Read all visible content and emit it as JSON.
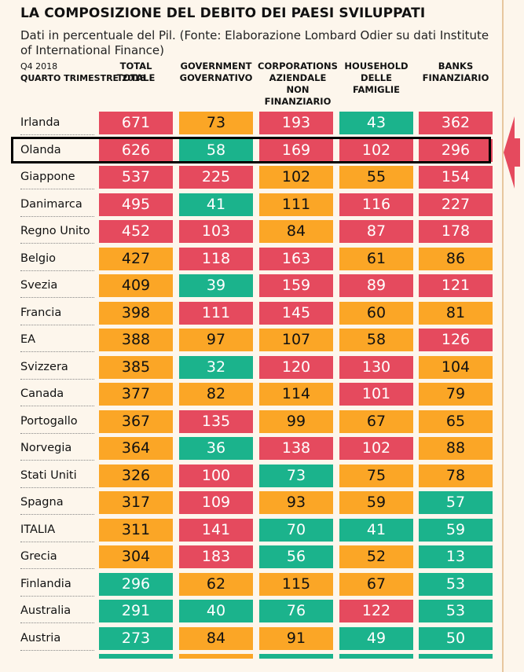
{
  "title": "LA COMPOSIZIONE DEL DEBITO DEI PAESI SVILUPPATI",
  "subtitle": "Dati in percentuale del Pil. (Fonte: Elaborazione Lombard Odier su dati Institute of International Finance)",
  "header": {
    "period": "Q4 2018",
    "period_it": "QUARTO TRIMESTRE 2018",
    "columns": [
      {
        "en": "TOTAL",
        "it": "TOTALE"
      },
      {
        "en": "GOVERNMENT",
        "it": "GOVERNATIVO"
      },
      {
        "en": "CORPORATIONS",
        "it": "AZIENDALE NON FINANZIARIO"
      },
      {
        "en": "HOUSEHOLD",
        "it": "DELLE FAMIGLIE"
      },
      {
        "en": "BANKS",
        "it": "FINANZIARIO"
      }
    ]
  },
  "colors": {
    "red": "#e54a5e",
    "orange": "#fba626",
    "green": "#1bb38c",
    "highlight_border": "#000000",
    "arrow": "#e54a5e"
  },
  "highlighted_row": "Olanda",
  "chart_data": {
    "type": "table",
    "title": "LA COMPOSIZIONE DEL DEBITO DEI PAESI SVILUPPATI",
    "columns": [
      "TOTAL",
      "GOVERNMENT",
      "CORPORATIONS",
      "HOUSEHOLD",
      "BANKS"
    ],
    "rows": [
      {
        "country": "Irlanda",
        "values": [
          671,
          73,
          193,
          43,
          362
        ],
        "colors": [
          "red",
          "org",
          "red",
          "grn",
          "red"
        ]
      },
      {
        "country": "Olanda",
        "values": [
          626,
          58,
          169,
          102,
          296
        ],
        "colors": [
          "red",
          "grn",
          "red",
          "red",
          "red"
        ]
      },
      {
        "country": "Giappone",
        "values": [
          537,
          225,
          102,
          55,
          154
        ],
        "colors": [
          "red",
          "red",
          "org",
          "org",
          "red"
        ]
      },
      {
        "country": "Danimarca",
        "values": [
          495,
          41,
          111,
          116,
          227
        ],
        "colors": [
          "red",
          "grn",
          "org",
          "red",
          "red"
        ]
      },
      {
        "country": "Regno Unito",
        "values": [
          452,
          103,
          84,
          87,
          178
        ],
        "colors": [
          "red",
          "red",
          "org",
          "red",
          "red"
        ]
      },
      {
        "country": "Belgio",
        "values": [
          427,
          118,
          163,
          61,
          86
        ],
        "colors": [
          "org",
          "red",
          "red",
          "org",
          "org"
        ]
      },
      {
        "country": "Svezia",
        "values": [
          409,
          39,
          159,
          89,
          121
        ],
        "colors": [
          "org",
          "grn",
          "red",
          "red",
          "red"
        ]
      },
      {
        "country": "Francia",
        "values": [
          398,
          111,
          145,
          60,
          81
        ],
        "colors": [
          "org",
          "red",
          "red",
          "org",
          "org"
        ]
      },
      {
        "country": "EA",
        "values": [
          388,
          97,
          107,
          58,
          126
        ],
        "colors": [
          "org",
          "org",
          "org",
          "org",
          "red"
        ]
      },
      {
        "country": "Svizzera",
        "values": [
          385,
          32,
          120,
          130,
          104
        ],
        "colors": [
          "org",
          "grn",
          "red",
          "red",
          "org"
        ]
      },
      {
        "country": "Canada",
        "values": [
          377,
          82,
          114,
          101,
          79
        ],
        "colors": [
          "org",
          "org",
          "org",
          "red",
          "org"
        ]
      },
      {
        "country": "Portogallo",
        "values": [
          367,
          135,
          99,
          67,
          65
        ],
        "colors": [
          "org",
          "red",
          "org",
          "org",
          "org"
        ]
      },
      {
        "country": "Norvegia",
        "values": [
          364,
          36,
          138,
          102,
          88
        ],
        "colors": [
          "org",
          "grn",
          "red",
          "red",
          "org"
        ]
      },
      {
        "country": "Stati Uniti",
        "values": [
          326,
          100,
          73,
          75,
          78
        ],
        "colors": [
          "org",
          "red",
          "grn",
          "org",
          "org"
        ]
      },
      {
        "country": "Spagna",
        "values": [
          317,
          109,
          93,
          59,
          57
        ],
        "colors": [
          "org",
          "red",
          "org",
          "org",
          "grn"
        ]
      },
      {
        "country": "ITALIA",
        "values": [
          311,
          141,
          70,
          41,
          59
        ],
        "colors": [
          "org",
          "red",
          "grn",
          "grn",
          "grn"
        ]
      },
      {
        "country": "Grecia",
        "values": [
          304,
          183,
          56,
          52,
          13
        ],
        "colors": [
          "org",
          "red",
          "grn",
          "org",
          "grn"
        ]
      },
      {
        "country": "Finlandia",
        "values": [
          296,
          62,
          115,
          67,
          53
        ],
        "colors": [
          "grn",
          "org",
          "org",
          "org",
          "grn"
        ]
      },
      {
        "country": "Australia",
        "values": [
          291,
          40,
          76,
          122,
          53
        ],
        "colors": [
          "grn",
          "grn",
          "grn",
          "red",
          "grn"
        ]
      },
      {
        "country": "Austria",
        "values": [
          273,
          84,
          91,
          49,
          50
        ],
        "colors": [
          "grn",
          "org",
          "org",
          "grn",
          "grn"
        ]
      }
    ],
    "partial_next_row_colors": [
      "grn",
      "org",
      "grn",
      "grn",
      "grn"
    ]
  }
}
